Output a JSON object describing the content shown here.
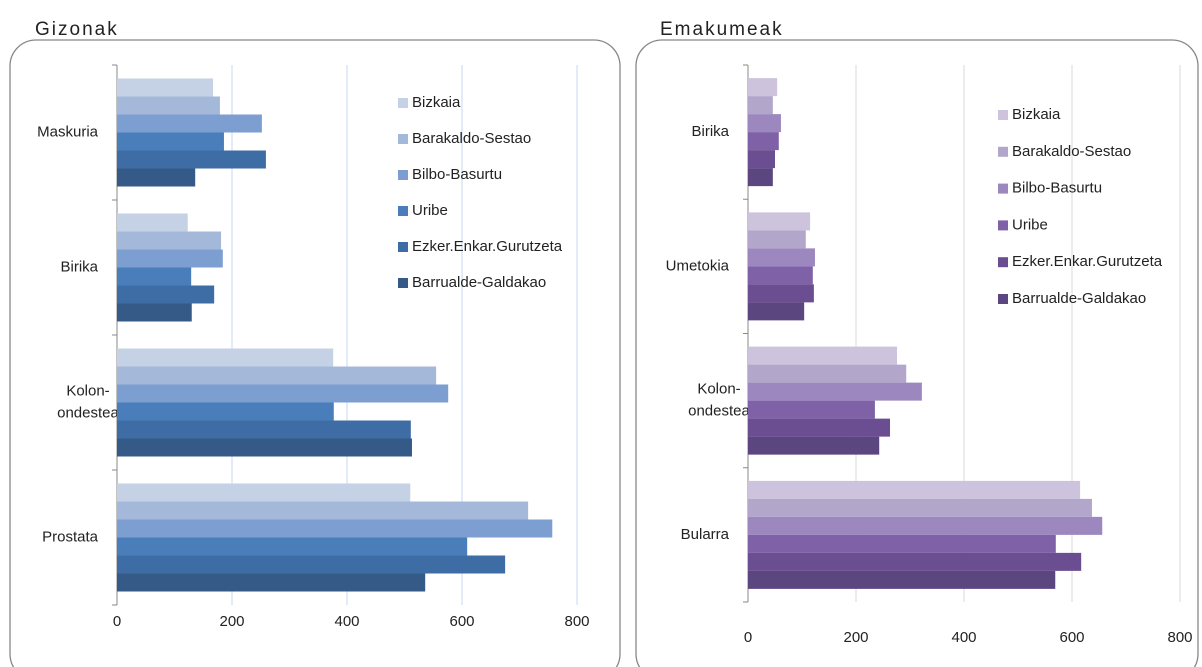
{
  "chart_data": [
    {
      "type": "bar",
      "title": "Gizonak",
      "categories": [
        "Maskuria",
        "Birika",
        "Kolon-ondestea",
        "Prostata"
      ],
      "series": [
        {
          "name": "Bizkaia",
          "color": "#c5d2e6",
          "values": [
            167,
            123,
            376,
            510
          ]
        },
        {
          "name": "Barakaldo-Sestao",
          "color": "#a4b9da",
          "values": [
            179,
            181,
            555,
            715
          ]
        },
        {
          "name": "Bilbo-Basurtu",
          "color": "#7d9ed0",
          "values": [
            252,
            184,
            576,
            757
          ]
        },
        {
          "name": "Uribe",
          "color": "#4a7ebb",
          "values": [
            186,
            129,
            377,
            609
          ]
        },
        {
          "name": "Ezker.Enkar.Gurutzeta",
          "color": "#3e6da6",
          "values": [
            259,
            169,
            511,
            675
          ]
        },
        {
          "name": "Barrualde-Galdakao",
          "color": "#365a87",
          "values": [
            136,
            130,
            513,
            536
          ]
        }
      ],
      "xlim": [
        0,
        800
      ],
      "xticks": [
        0,
        200,
        400,
        600,
        800
      ],
      "grid": true
    },
    {
      "type": "bar",
      "title": "Emakumeak",
      "categories": [
        "Birika",
        "Umetokia",
        "Kolon-ondestea",
        "Bularra"
      ],
      "series": [
        {
          "name": "Bizkaia",
          "color": "#cdc3dc",
          "values": [
            54,
            115,
            276,
            615
          ]
        },
        {
          "name": "Barakaldo-Sestao",
          "color": "#b3a6cb",
          "values": [
            46,
            107,
            293,
            637
          ]
        },
        {
          "name": "Bilbo-Basurtu",
          "color": "#9c87bf",
          "values": [
            61,
            124,
            322,
            656
          ]
        },
        {
          "name": "Uribe",
          "color": "#7e61a6",
          "values": [
            57,
            120,
            235,
            570
          ]
        },
        {
          "name": "Ezker.Enkar.Gurutzeta",
          "color": "#6b4d91",
          "values": [
            50,
            122,
            263,
            617
          ]
        },
        {
          "name": "Barrualde-Galdakao",
          "color": "#5c4680",
          "values": [
            46,
            104,
            243,
            569
          ]
        }
      ],
      "xlim": [
        0,
        800
      ],
      "xticks": [
        0,
        200,
        400,
        600,
        800
      ],
      "grid": true
    }
  ]
}
